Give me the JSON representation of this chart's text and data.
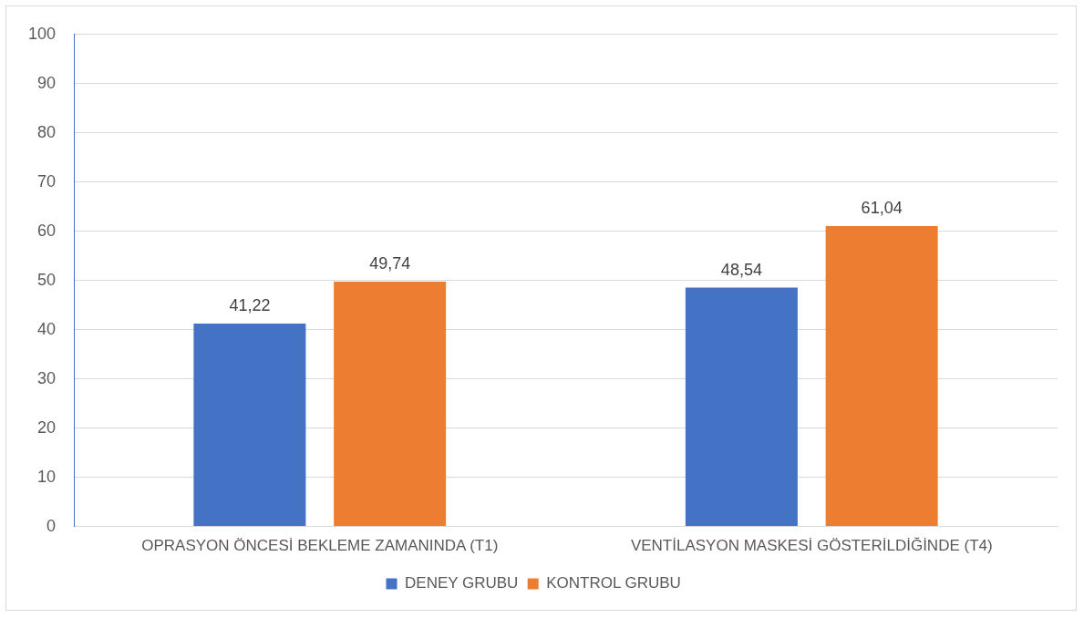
{
  "chart_data": {
    "type": "bar",
    "categories": [
      "OPRASYON ÖNCESİ BEKLEME ZAMANINDA (T1)",
      "VENTİLASYON MASKESİ GÖSTERİLDİĞİNDE (T4)"
    ],
    "series": [
      {
        "name": "DENEY GRUBU",
        "color": "#4472c4",
        "values": [
          41.22,
          48.54
        ],
        "value_labels": [
          "41,22",
          "48,54"
        ]
      },
      {
        "name": "KONTROL GRUBU",
        "color": "#ed7d31",
        "values": [
          49.74,
          61.04
        ],
        "value_labels": [
          "49,74",
          "61,04"
        ]
      }
    ],
    "ylim": [
      0,
      100
    ],
    "yticks": [
      0,
      10,
      20,
      30,
      40,
      50,
      60,
      70,
      80,
      90,
      100
    ],
    "grid": "y",
    "legend": "bottom"
  }
}
